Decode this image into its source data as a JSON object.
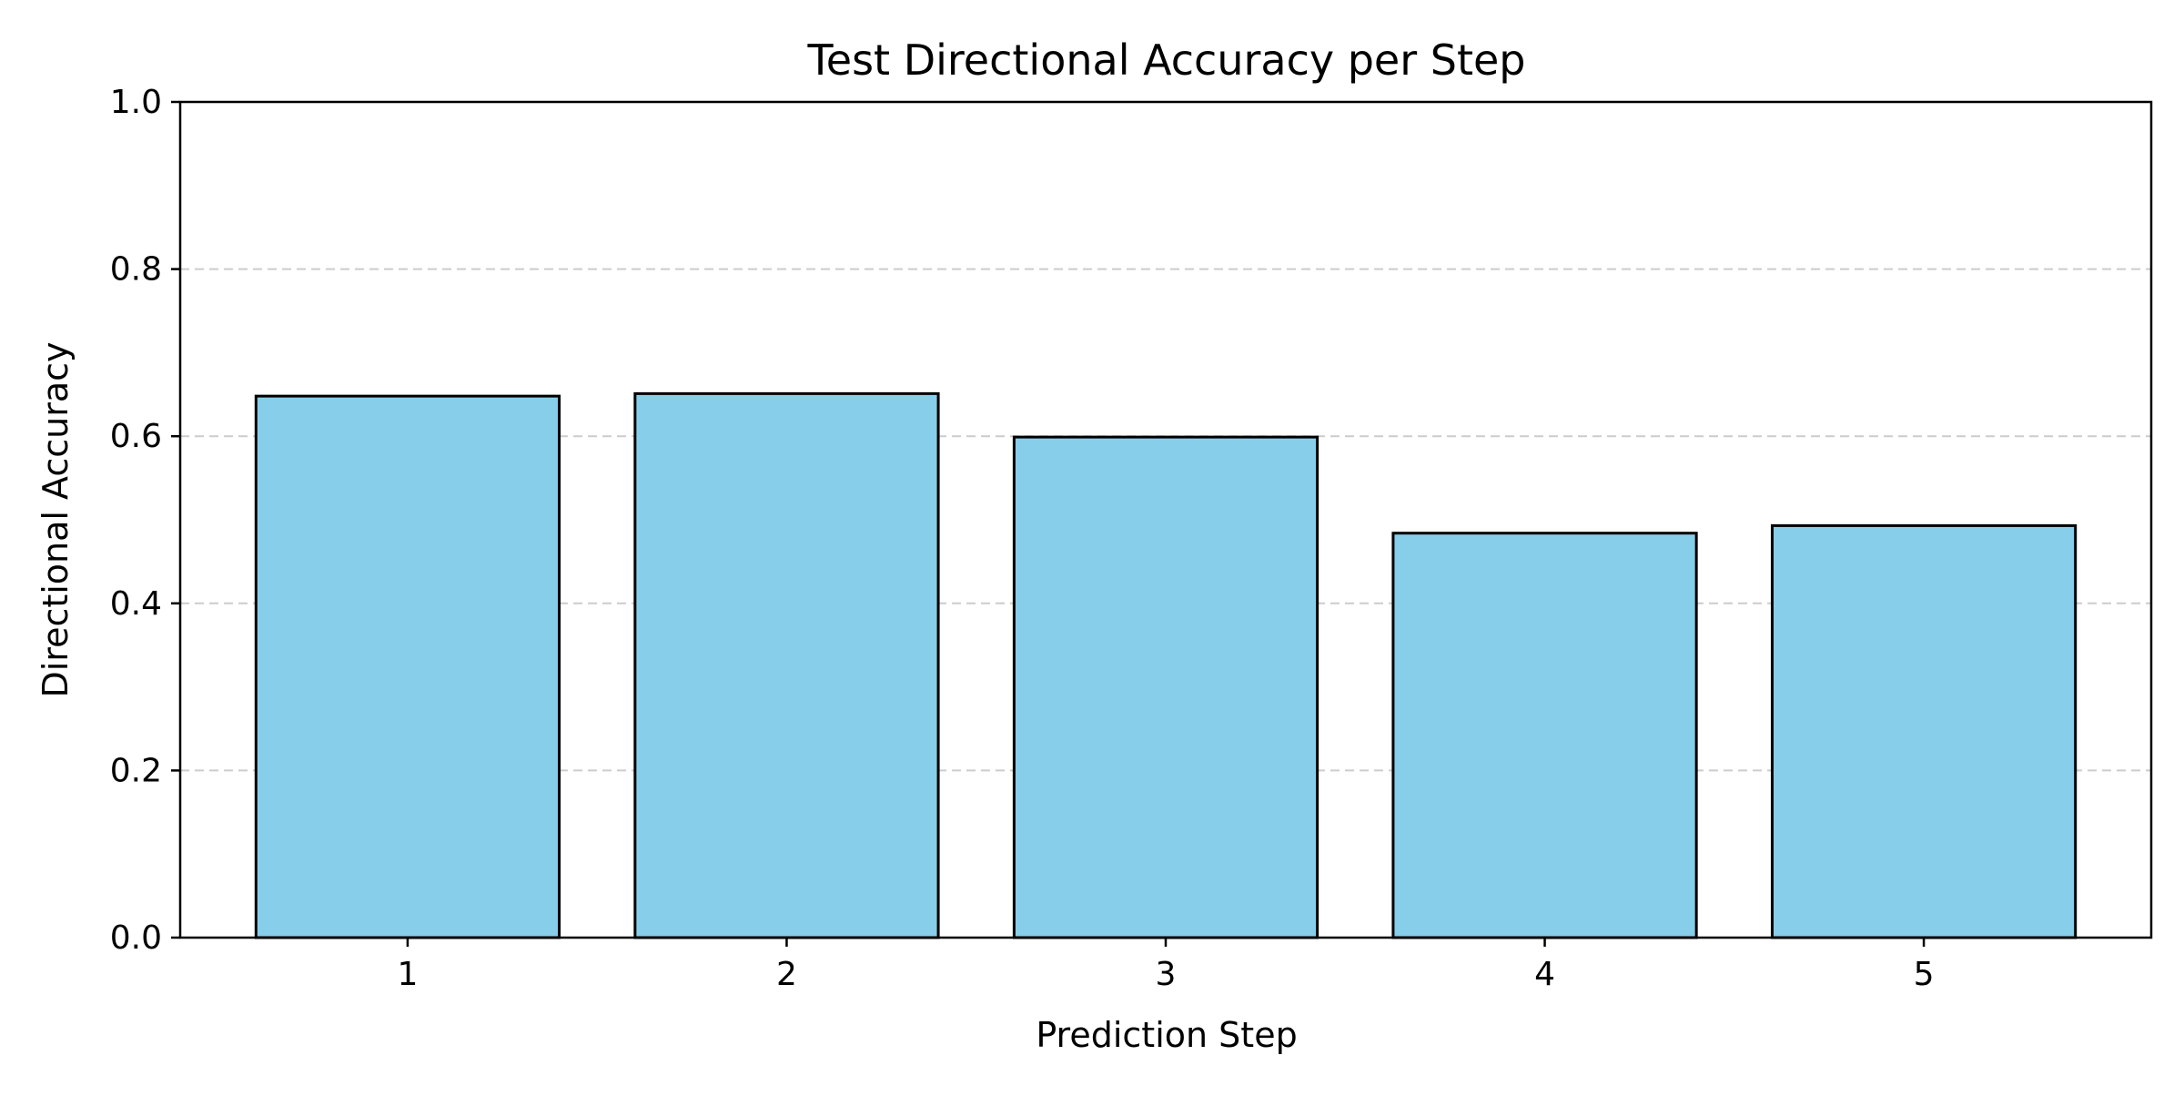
{
  "chart_data": {
    "type": "bar",
    "title": "Test Directional Accuracy per Step",
    "xlabel": "Prediction Step",
    "ylabel": "Directional Accuracy",
    "categories": [
      "1",
      "2",
      "3",
      "4",
      "5"
    ],
    "values": [
      0.648,
      0.651,
      0.599,
      0.484,
      0.493
    ],
    "ylim": [
      0,
      1.0
    ],
    "yticks": [
      0.0,
      0.2,
      0.4,
      0.6,
      0.8,
      1.0
    ],
    "ytick_labels": [
      "0.0",
      "0.2",
      "0.4",
      "0.6",
      "0.8",
      "1.0"
    ],
    "grid": {
      "axis": "y",
      "style": "dashed",
      "color": "#cccccc"
    },
    "bar_color": "#87ceeb",
    "bar_edge_color": "#000000",
    "legend": "none"
  }
}
